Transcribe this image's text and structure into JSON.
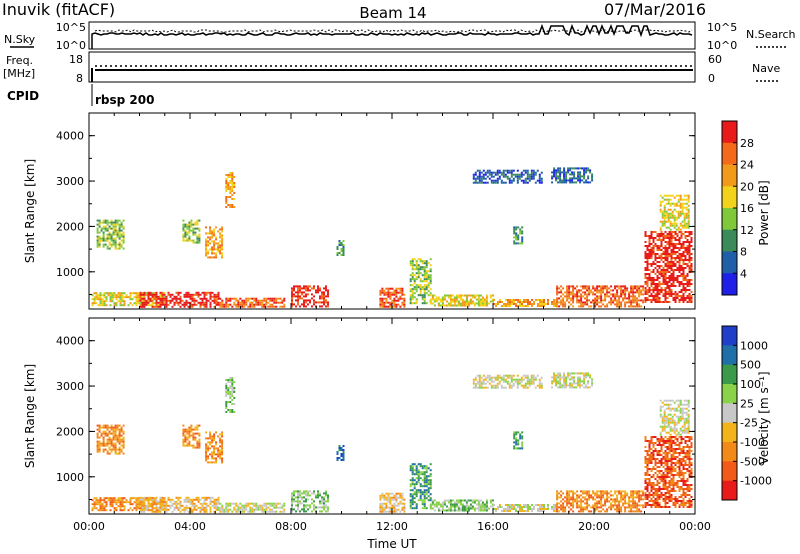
{
  "header": {
    "site": "Inuvik (fitACF)",
    "beam": "Beam 14",
    "date": "07/Mar/2016"
  },
  "panels": {
    "nsky_label": "N.Sky",
    "nsearch_label": "N.Search",
    "nsky_ticks": [
      "10^5",
      "10^0"
    ],
    "freq_label_top": "Freq.",
    "freq_label_bottom": "[MHz]",
    "freq_ticks": [
      "18",
      "8"
    ],
    "nave_label": "Nave",
    "nave_ticks": [
      "60",
      "0"
    ],
    "cpid_label": "CPID",
    "cpid_value": "rbsp 200"
  },
  "colors": {
    "power": [
      "#1f1fe8",
      "#1f5fa8",
      "#3a8a5a",
      "#7ec83a",
      "#f2d21a",
      "#f29a1a",
      "#f26a1a",
      "#e81a1a"
    ],
    "velocity": [
      "#e81a1a",
      "#f25a1a",
      "#f28a1a",
      "#f2b41a",
      "#c8c8c8",
      "#8ad24a",
      "#3a9a4a",
      "#1f6fa8",
      "#1f3fc8"
    ]
  },
  "chart_data": [
    {
      "type": "heatmap",
      "name": "Power",
      "ylabel": "Slant Range [km]",
      "ylim": [
        180,
        4500
      ],
      "y_ticks": [
        "1000",
        "2000",
        "3000",
        "4000"
      ],
      "x_ticks": [
        "00:00",
        "04:00",
        "08:00",
        "12:00",
        "16:00",
        "20:00",
        "00:00"
      ],
      "colorbar_label": "Power [dB]",
      "colorbar_ticks": [
        "4",
        "8",
        "12",
        "16",
        "20",
        "24",
        "28"
      ],
      "regions": [
        {
          "t0": 0.1,
          "t1": 3.0,
          "r0": 220,
          "r1": 550,
          "level": 4
        },
        {
          "t0": 2.0,
          "t1": 5.2,
          "r0": 220,
          "r1": 560,
          "level": 7
        },
        {
          "t0": 5.0,
          "t1": 7.8,
          "r0": 220,
          "r1": 430,
          "level": 6
        },
        {
          "t0": 8.0,
          "t1": 9.5,
          "r0": 220,
          "r1": 700,
          "level": 7
        },
        {
          "t0": 11.5,
          "t1": 12.5,
          "r0": 220,
          "r1": 650,
          "level": 6
        },
        {
          "t0": 12.7,
          "t1": 13.6,
          "r0": 300,
          "r1": 1300,
          "level": 3
        },
        {
          "t0": 13.5,
          "t1": 16.0,
          "r0": 220,
          "r1": 500,
          "level": 4
        },
        {
          "t0": 16.0,
          "t1": 18.5,
          "r0": 220,
          "r1": 400,
          "level": 5
        },
        {
          "t0": 18.5,
          "t1": 22.0,
          "r0": 220,
          "r1": 700,
          "level": 6
        },
        {
          "t0": 22.0,
          "t1": 23.9,
          "r0": 300,
          "r1": 1900,
          "level": 7
        },
        {
          "t0": 0.3,
          "t1": 1.4,
          "r0": 1500,
          "r1": 2150,
          "level": 3
        },
        {
          "t0": 3.7,
          "t1": 4.4,
          "r0": 1600,
          "r1": 2150,
          "level": 3
        },
        {
          "t0": 4.6,
          "t1": 5.3,
          "r0": 1300,
          "r1": 2000,
          "level": 5
        },
        {
          "t0": 5.4,
          "t1": 5.8,
          "r0": 2400,
          "r1": 3200,
          "level": 5
        },
        {
          "t0": 9.8,
          "t1": 10.1,
          "r0": 1350,
          "r1": 1700,
          "level": 2
        },
        {
          "t0": 15.2,
          "t1": 18.0,
          "r0": 2950,
          "r1": 3250,
          "level": 1
        },
        {
          "t0": 18.3,
          "t1": 20.0,
          "r0": 2950,
          "r1": 3300,
          "level": 1
        },
        {
          "t0": 22.6,
          "t1": 23.8,
          "r0": 1900,
          "r1": 2700,
          "level": 4
        },
        {
          "t0": 16.8,
          "t1": 17.2,
          "r0": 1600,
          "r1": 2000,
          "level": 2
        }
      ]
    },
    {
      "type": "heatmap",
      "name": "Velocity",
      "ylabel": "Slant Range [km]",
      "ylim": [
        180,
        4500
      ],
      "y_ticks": [
        "1000",
        "2000",
        "3000",
        "4000"
      ],
      "x_ticks": [
        "00:00",
        "04:00",
        "08:00",
        "12:00",
        "16:00",
        "20:00",
        "00:00"
      ],
      "xlabel": "Time UT",
      "colorbar_label": "Velocity [m s⁻¹]",
      "colorbar_ticks": [
        "1000",
        "500",
        "100",
        "25",
        "-25",
        "-100",
        "-500",
        "-1000"
      ],
      "regions": [
        {
          "t0": 0.1,
          "t1": 3.0,
          "r0": 220,
          "r1": 550,
          "level": 2
        },
        {
          "t0": 2.0,
          "t1": 5.2,
          "r0": 220,
          "r1": 560,
          "level": 3
        },
        {
          "t0": 5.0,
          "t1": 7.8,
          "r0": 220,
          "r1": 430,
          "level": 4
        },
        {
          "t0": 8.0,
          "t1": 9.5,
          "r0": 220,
          "r1": 700,
          "level": 5
        },
        {
          "t0": 11.5,
          "t1": 12.5,
          "r0": 220,
          "r1": 650,
          "level": 3
        },
        {
          "t0": 12.7,
          "t1": 13.6,
          "r0": 300,
          "r1": 1300,
          "level": 6
        },
        {
          "t0": 13.5,
          "t1": 16.0,
          "r0": 220,
          "r1": 500,
          "level": 5
        },
        {
          "t0": 16.0,
          "t1": 18.5,
          "r0": 220,
          "r1": 400,
          "level": 4
        },
        {
          "t0": 18.5,
          "t1": 22.0,
          "r0": 220,
          "r1": 700,
          "level": 2
        },
        {
          "t0": 22.0,
          "t1": 23.9,
          "r0": 300,
          "r1": 1900,
          "level": 1
        },
        {
          "t0": 0.3,
          "t1": 1.4,
          "r0": 1500,
          "r1": 2150,
          "level": 2
        },
        {
          "t0": 3.7,
          "t1": 4.4,
          "r0": 1600,
          "r1": 2150,
          "level": 2
        },
        {
          "t0": 4.6,
          "t1": 5.3,
          "r0": 1300,
          "r1": 2000,
          "level": 2
        },
        {
          "t0": 5.4,
          "t1": 5.8,
          "r0": 2400,
          "r1": 3200,
          "level": 5
        },
        {
          "t0": 9.8,
          "t1": 10.1,
          "r0": 1350,
          "r1": 1700,
          "level": 7
        },
        {
          "t0": 15.2,
          "t1": 18.0,
          "r0": 2950,
          "r1": 3250,
          "level": 4
        },
        {
          "t0": 18.3,
          "t1": 20.0,
          "r0": 2950,
          "r1": 3300,
          "level": 4
        },
        {
          "t0": 22.6,
          "t1": 23.8,
          "r0": 1900,
          "r1": 2700,
          "level": 4
        },
        {
          "t0": 16.8,
          "t1": 17.2,
          "r0": 1600,
          "r1": 2000,
          "level": 6
        }
      ]
    }
  ]
}
